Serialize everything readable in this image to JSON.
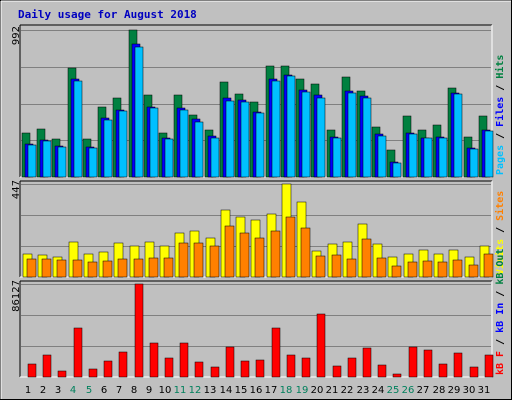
{
  "chart_data": {
    "type": "bar",
    "title": "Daily usage for August 2018",
    "x": [
      "1",
      "2",
      "3",
      "4",
      "5",
      "6",
      "7",
      "8",
      "9",
      "10",
      "11",
      "12",
      "13",
      "14",
      "15",
      "16",
      "17",
      "18",
      "19",
      "20",
      "21",
      "22",
      "23",
      "24",
      "25",
      "26",
      "27",
      "28",
      "29",
      "30",
      "31"
    ],
    "weekend_days": [
      "4",
      "5",
      "11",
      "12",
      "18",
      "19",
      "25",
      "26"
    ],
    "panels": [
      {
        "id": "hits",
        "ymax_label": "992",
        "ylim": [
          0,
          992
        ],
        "legend": [
          "Pages",
          "/",
          "Files",
          "/",
          "Hits"
        ],
        "series": [
          {
            "name": "Hits",
            "color": "#008040",
            "values": [
              300,
              325,
              258,
              738,
              258,
              474,
              535,
              992,
              552,
              300,
              552,
              420,
              318,
              640,
              558,
              505,
              752,
              752,
              662,
              626,
              320,
              675,
              578,
              340,
              182,
              410,
              320,
              350,
              600,
              270,
              410
            ]
          },
          {
            "name": "Files",
            "color": "#0000ff",
            "values": [
              222,
              250,
              210,
              663,
              200,
              400,
              450,
              900,
              475,
              265,
              465,
              390,
              274,
              535,
              520,
              439,
              663,
              690,
              590,
              550,
              270,
              580,
              545,
              290,
              100,
              300,
              265,
              270,
              565,
              194,
              320
            ]
          },
          {
            "name": "Pages",
            "color": "#00c0ff",
            "values": [
              215,
              240,
              205,
              650,
              193,
              385,
              445,
              880,
              465,
              255,
              455,
              370,
              265,
              515,
              505,
              430,
              650,
              680,
              575,
              535,
              260,
              565,
              530,
              280,
              95,
              290,
              260,
              260,
              560,
              190,
              310
            ]
          }
        ]
      },
      {
        "id": "visits",
        "ymax_label": "447",
        "ylim": [
          0,
          447
        ],
        "legend": [
          "Visits",
          "/",
          "Sites"
        ],
        "series": [
          {
            "name": "Visits",
            "color": "#ffff00",
            "values": [
              112,
              106,
              97,
              167,
              112,
              120,
              162,
              147,
              167,
              147,
              210,
              223,
              187,
              320,
              290,
              276,
              301,
              447,
              360,
              127,
              158,
              168,
              255,
              158,
              97,
              112,
              128,
              112,
              132,
              97,
              150
            ]
          },
          {
            "name": "Sites",
            "color": "#ff8000",
            "values": [
              87,
              87,
              82,
              83,
              72,
              78,
              87,
              87,
              92,
              92,
              163,
              162,
              147,
              243,
              210,
              187,
              222,
              287,
              236,
              102,
              106,
              87,
              182,
              92,
              52,
              72,
              77,
              72,
              82,
              57,
              112
            ]
          }
        ]
      },
      {
        "id": "kbytes",
        "ymax_label": "86127",
        "ylim": [
          0,
          86127
        ],
        "legend": [
          "kB F",
          "/",
          "kB In",
          "/",
          "kB Out"
        ],
        "series": [
          {
            "name": "kB Out",
            "color": "#008040",
            "values": [
              0,
              0,
              0,
              0,
              0,
              0,
              0,
              0,
              0,
              0,
              0,
              0,
              0,
              0,
              0,
              0,
              0,
              0,
              0,
              0,
              0,
              0,
              0,
              0,
              0,
              0,
              0,
              0,
              0,
              0,
              0
            ]
          },
          {
            "name": "kB In",
            "color": "#0000ff",
            "values": [
              0,
              0,
              0,
              0,
              0,
              0,
              0,
              0,
              0,
              0,
              0,
              0,
              0,
              0,
              0,
              0,
              0,
              0,
              0,
              0,
              0,
              0,
              0,
              0,
              0,
              0,
              0,
              0,
              0,
              0,
              0
            ]
          },
          {
            "name": "kB F",
            "color": "#ff0000",
            "values": [
              12500,
              20500,
              5500,
              45000,
              7500,
              15000,
              23000,
              86127,
              31500,
              17500,
              31500,
              14000,
              9000,
              28000,
              15000,
              16000,
              45000,
              20500,
              17500,
              58000,
              10000,
              17500,
              27000,
              11000,
              3000,
              28000,
              25000,
              12500,
              22500,
              9500,
              20500
            ]
          }
        ]
      }
    ],
    "colors": {
      "title": "#0000c0",
      "weekday_label": "#000000",
      "weekend_label": "#00805c",
      "frame_bg": "#c0c0c0",
      "plot_bg": "#c0c0c0",
      "grid": "#808080"
    }
  }
}
